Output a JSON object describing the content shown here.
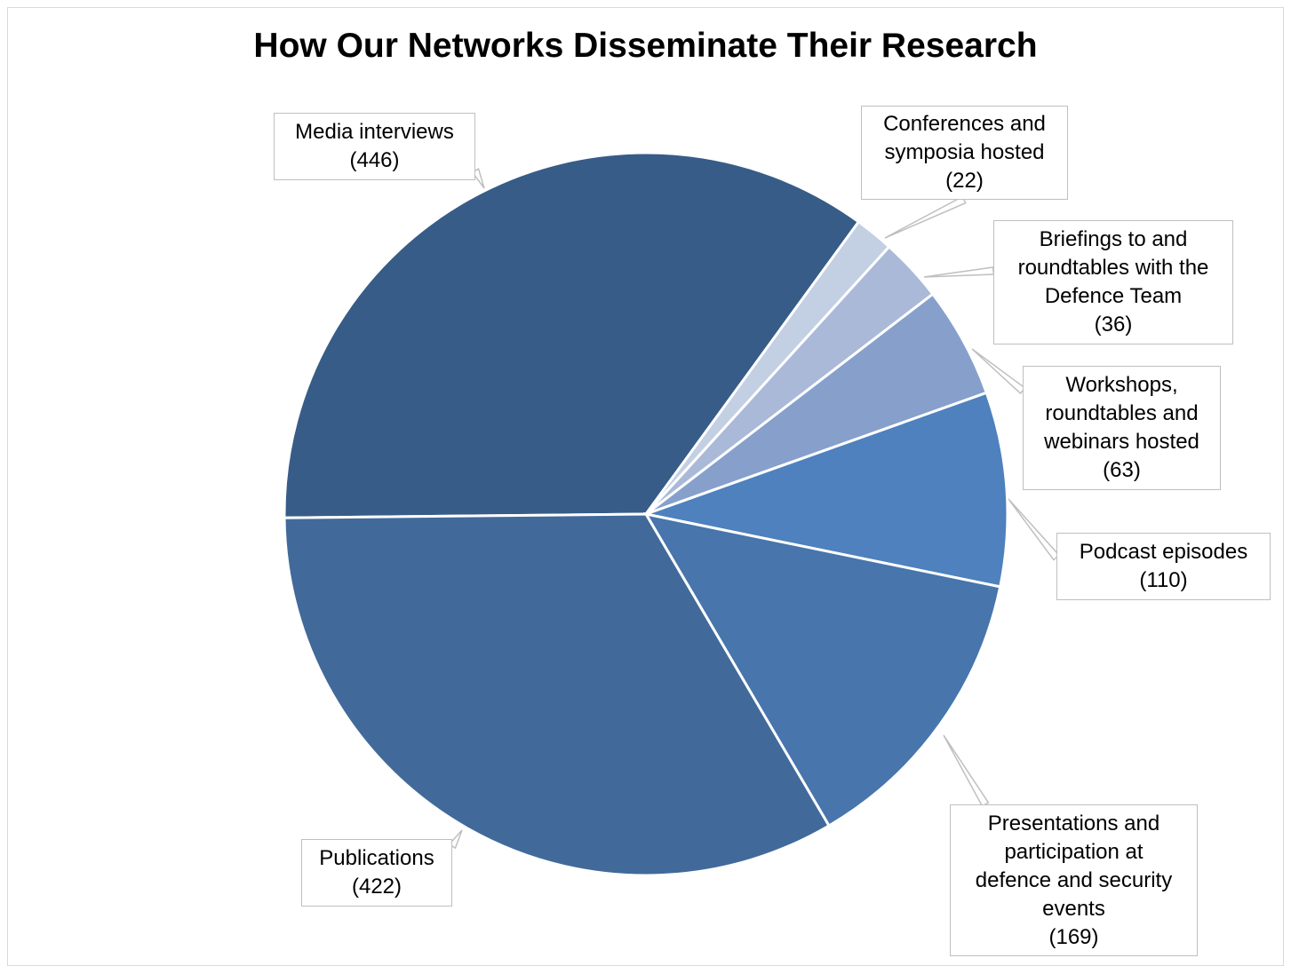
{
  "chart_data": {
    "type": "pie",
    "title": "How Our Networks Disseminate Their Research",
    "data_labels_show_value_in_parentheses": true,
    "slices": [
      {
        "name": "Media interviews",
        "value": 446,
        "color": "#375c87"
      },
      {
        "name": "Conferences and\nsymposia hosted",
        "value": 22,
        "color": "#c3cfe2"
      },
      {
        "name": "Briefings to and\nroundtables with the\nDefence Team",
        "value": 36,
        "color": "#aab9d8"
      },
      {
        "name": "Workshops,\nroundtables and\nwebinars hosted",
        "value": 63,
        "color": "#86a0cb"
      },
      {
        "name": "Podcast episodes",
        "value": 110,
        "color": "#4e81bd"
      },
      {
        "name": "Presentations and\nparticipation at\ndefence and security\nevents",
        "value": 169,
        "color": "#4775ac"
      },
      {
        "name": "Publications",
        "value": 422,
        "color": "#416a9b"
      }
    ],
    "value_labels": [
      "(446)",
      "(22)",
      "(36)",
      "(63)",
      "(110)",
      "(169)",
      "(422)"
    ],
    "legend": "none"
  }
}
